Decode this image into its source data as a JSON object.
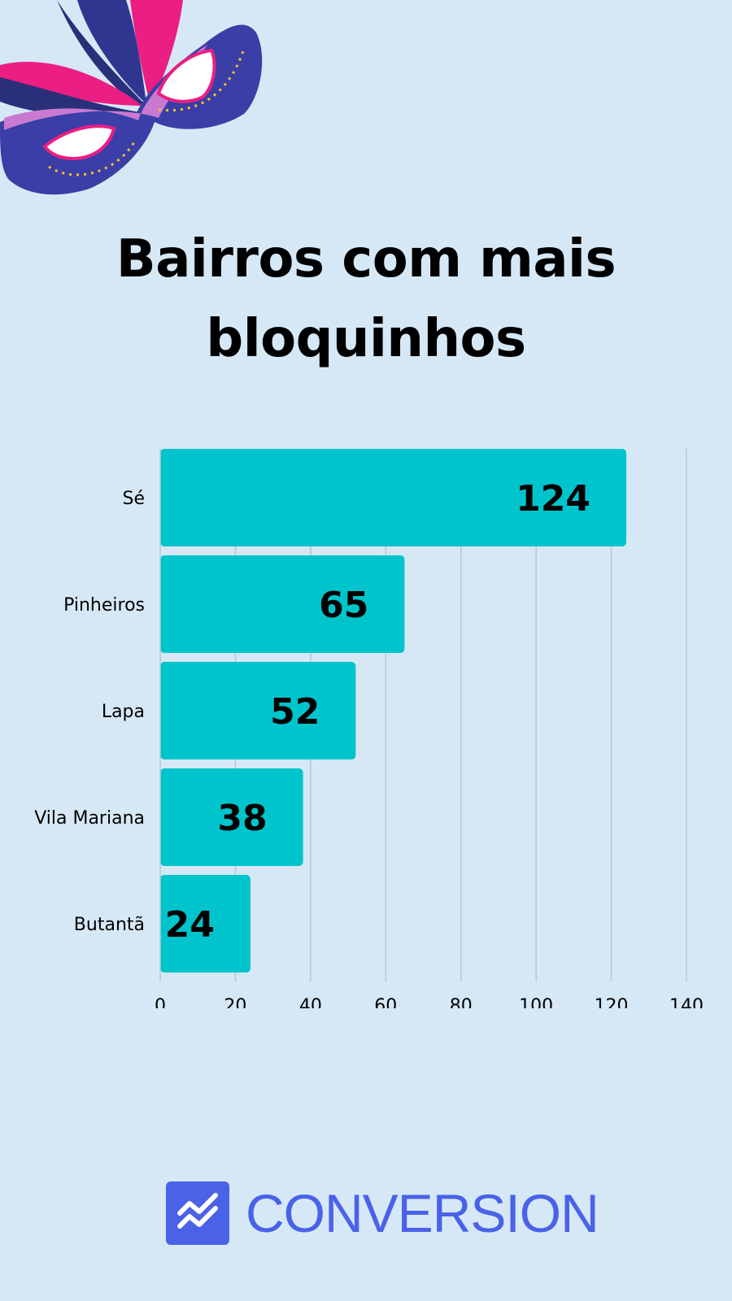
{
  "title_lines": [
    "Bairros com mais",
    "bloquinhos"
  ],
  "brand": {
    "name": "CONVERSION",
    "color": "#4a62e8",
    "icon": "trend-chart-icon"
  },
  "decoration": {
    "icon": "carnival-mask-icon"
  },
  "colors": {
    "background": "#d6e8f5",
    "bar": "#00c4cc",
    "grid": "#b7c7d3"
  },
  "chart_data": {
    "type": "bar",
    "orientation": "horizontal",
    "categories": [
      "Sé",
      "Pinheiros",
      "Lapa",
      "Vila Mariana",
      "Butantã"
    ],
    "values": [
      124,
      65,
      52,
      38,
      24
    ],
    "data_labels": [
      "124",
      "65",
      "52",
      "38",
      "24"
    ],
    "x_ticks": [
      0,
      20,
      40,
      60,
      80,
      100,
      120,
      140
    ],
    "xlim": [
      0,
      140
    ],
    "grid": true,
    "legend": "none"
  }
}
